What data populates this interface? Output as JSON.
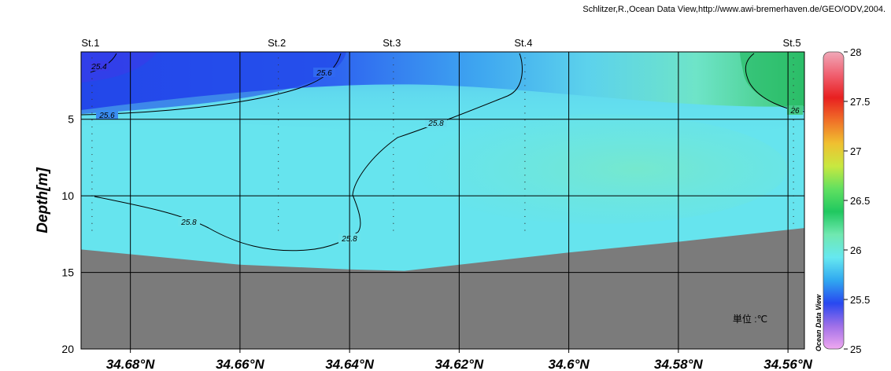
{
  "credit": "Schlitzer,R.,Ocean Data View,http://www.awi-bremerhaven.de/GEO/ODV,2004.",
  "watermark": "Ocean Data View",
  "unit_label": "単位 :℃",
  "chart_data": {
    "type": "heatmap",
    "title": "",
    "xlabel": "",
    "ylabel": "Depth[m]",
    "x_range_deg_n": [
      34.689,
      34.557
    ],
    "x_direction": "decreasing-left-to-right",
    "x_ticks": [
      {
        "value": 34.68,
        "label": "34.68°N"
      },
      {
        "value": 34.66,
        "label": "34.66°N"
      },
      {
        "value": 34.64,
        "label": "34.64°N"
      },
      {
        "value": 34.62,
        "label": "34.62°N"
      },
      {
        "value": 34.6,
        "label": "34.6°N"
      },
      {
        "value": 34.58,
        "label": "34.58°N"
      },
      {
        "value": 34.56,
        "label": "34.56°N"
      }
    ],
    "y_range": [
      0.6,
      20
    ],
    "y_inverted": true,
    "y_ticks": [
      {
        "value": 5,
        "label": "5"
      },
      {
        "value": 10,
        "label": "10"
      },
      {
        "value": 15,
        "label": "15"
      },
      {
        "value": 20,
        "label": "20"
      }
    ],
    "grid": true,
    "stations": [
      {
        "name": "St.1",
        "lat": 34.687
      },
      {
        "name": "St.2",
        "lat": 34.653
      },
      {
        "name": "St.3",
        "lat": 34.632
      },
      {
        "name": "St.4",
        "lat": 34.608
      },
      {
        "name": "St.5",
        "lat": 34.559
      }
    ],
    "colorbar": {
      "min": 25,
      "max": 28,
      "ticks": [
        "25",
        "25.5",
        "26",
        "26.5",
        "27",
        "27.5",
        "28"
      ],
      "colors": [
        "#f0a8f0",
        "#a070e8",
        "#2848f0",
        "#30a8f0",
        "#66e8f0",
        "#70e8b0",
        "#20c860",
        "#60e060",
        "#c8e840",
        "#f0c030",
        "#f07028",
        "#e82020",
        "#f06070",
        "#f0a8b8"
      ]
    },
    "contour_labels": [
      "25.4",
      "25.6",
      "25.6",
      "25.8",
      "25.8",
      "25.8",
      "26"
    ],
    "seafloor_depth_profile": [
      {
        "lat": 34.689,
        "depth": 13.5
      },
      {
        "lat": 34.66,
        "depth": 14.5
      },
      {
        "lat": 34.64,
        "depth": 14.8
      },
      {
        "lat": 34.63,
        "depth": 14.9
      },
      {
        "lat": 34.6,
        "depth": 13.7
      },
      {
        "lat": 34.58,
        "depth": 13.0
      },
      {
        "lat": 34.557,
        "depth": 12.1
      }
    ],
    "temperature_field_samples": [
      {
        "lat": 34.687,
        "depth": 1,
        "value": 25.3
      },
      {
        "lat": 34.66,
        "depth": 1,
        "value": 25.4
      },
      {
        "lat": 34.64,
        "depth": 1,
        "value": 25.6
      },
      {
        "lat": 34.6,
        "depth": 1,
        "value": 25.85
      },
      {
        "lat": 34.56,
        "depth": 1,
        "value": 26.05
      },
      {
        "lat": 34.687,
        "depth": 6,
        "value": 25.7
      },
      {
        "lat": 34.6,
        "depth": 6,
        "value": 25.9
      },
      {
        "lat": 34.56,
        "depth": 6,
        "value": 25.95
      },
      {
        "lat": 34.687,
        "depth": 12,
        "value": 25.75
      },
      {
        "lat": 34.6,
        "depth": 12,
        "value": 25.85
      }
    ]
  }
}
